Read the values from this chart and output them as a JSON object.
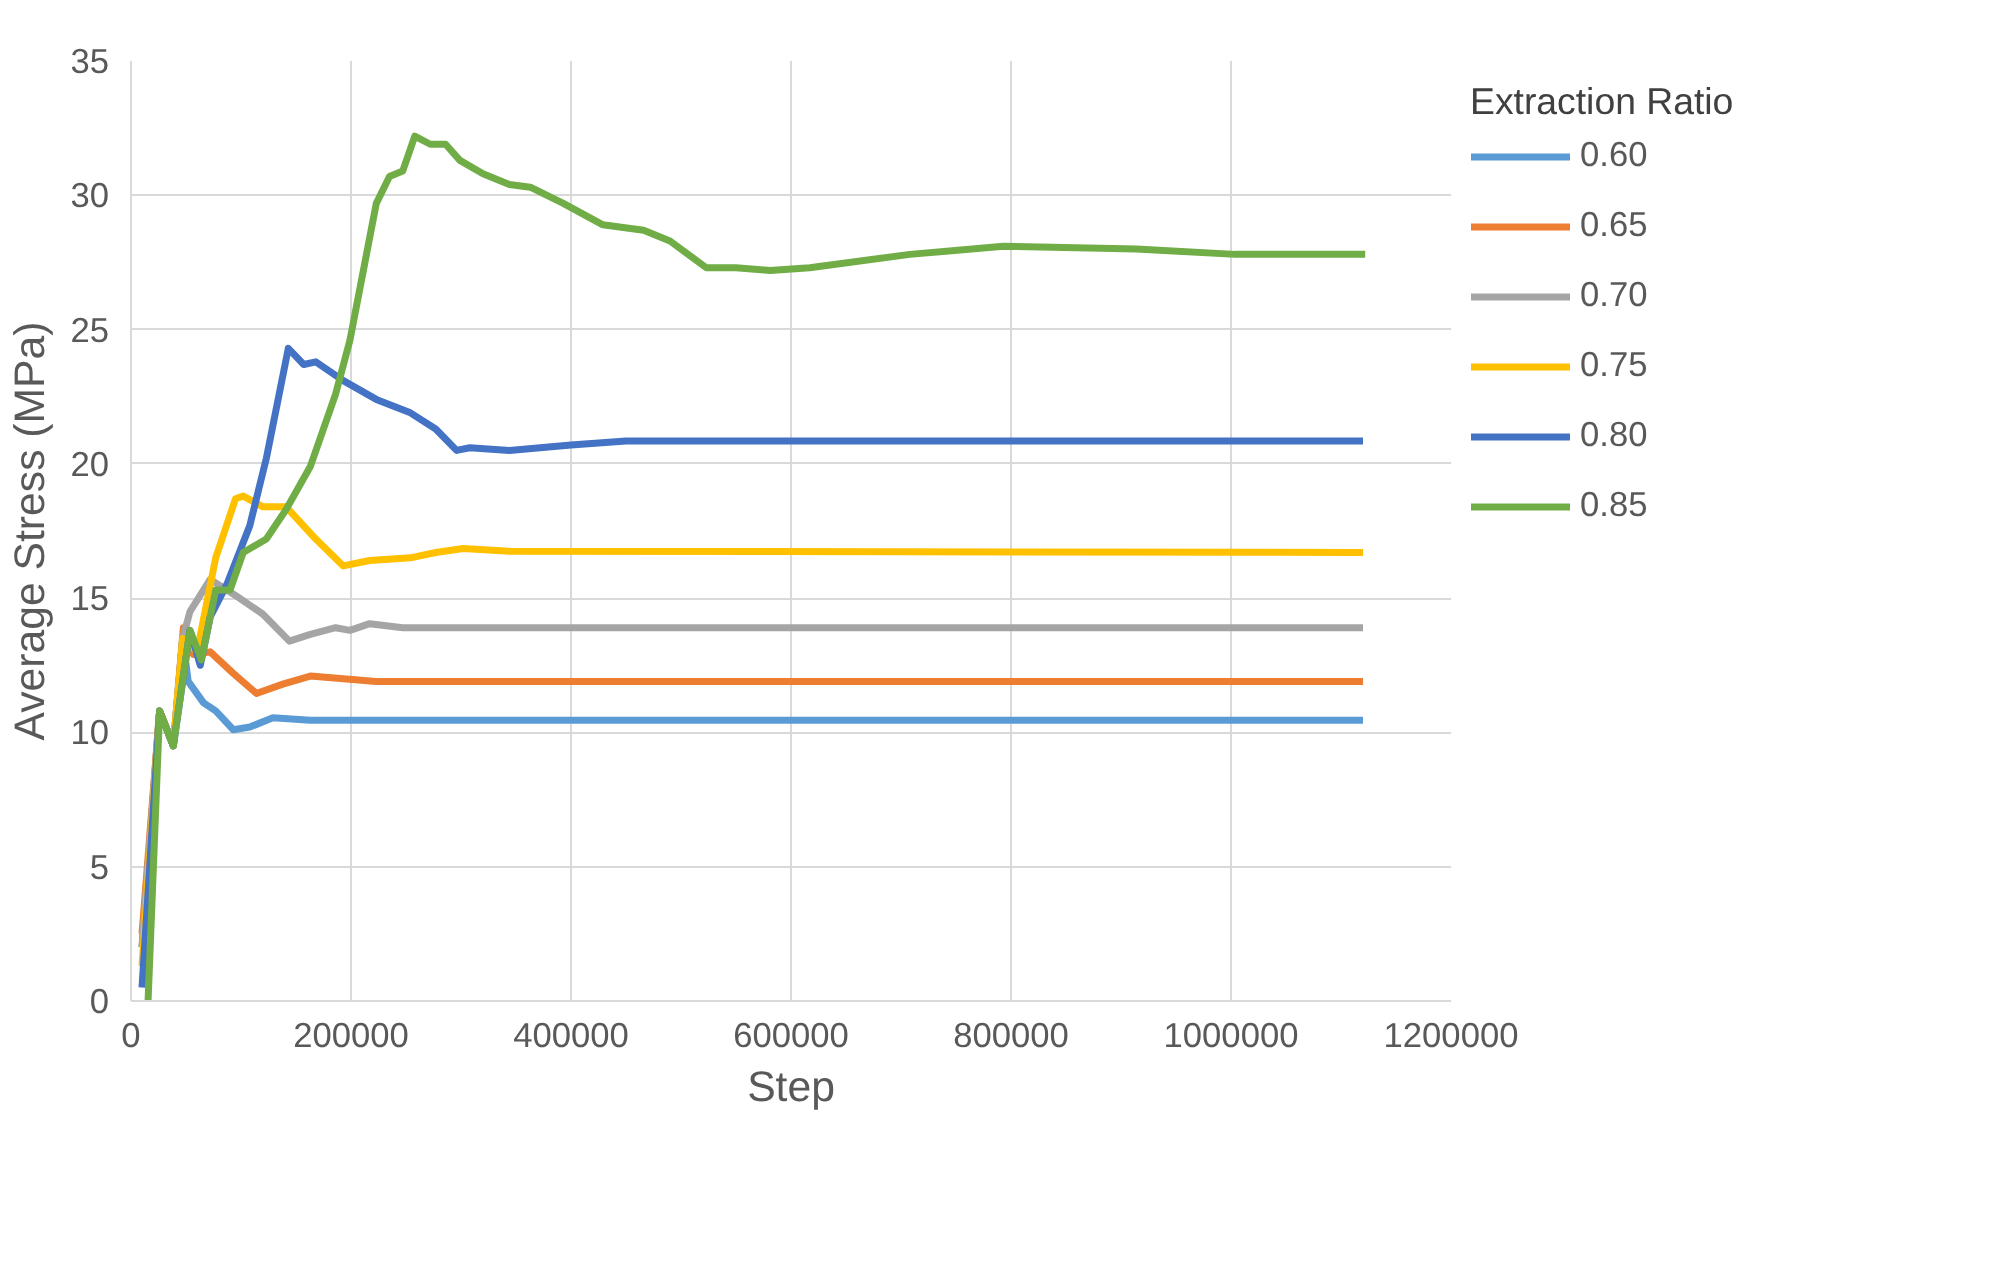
{
  "chart_data": {
    "type": "line",
    "xlabel": "Step",
    "ylabel": "Average Stress (MPa)",
    "legend_title": "Extraction Ratio",
    "legend": "right",
    "grid": true,
    "marker": "none",
    "line_style": "solid",
    "xlim": [
      0,
      1200000
    ],
    "xticks": [
      0,
      200000,
      400000,
      600000,
      800000,
      1000000,
      1200000
    ],
    "ylim": [
      0,
      35
    ],
    "yticks": [
      0,
      5,
      10,
      15,
      20,
      25,
      30,
      35
    ],
    "series": [
      {
        "name": "0.60",
        "color": "#5b9bd5",
        "x": [
          10000,
          26000,
          38500,
          47000,
          52000,
          66000,
          77000,
          93000,
          108000,
          129000,
          163000,
          1120000
        ],
        "values": [
          2,
          10.8,
          9.5,
          13.5,
          11.9,
          11.1,
          10.8,
          10.1,
          10.2,
          10.55,
          10.45,
          10.45
        ]
      },
      {
        "name": "0.65",
        "color": "#ed7d31",
        "x": [
          10000,
          26000,
          38500,
          47600,
          56700,
          72000,
          93000,
          114000,
          138000,
          163000,
          193000,
          223000,
          1120000
        ],
        "values": [
          2.5,
          10.8,
          9.5,
          13.9,
          12.9,
          13.0,
          12.2,
          11.45,
          11.8,
          12.1,
          12.0,
          11.9,
          11.9
        ]
      },
      {
        "name": "0.70",
        "color": "#a5a5a5",
        "x": [
          10000,
          26000,
          38500,
          47000,
          53600,
          72000,
          95000,
          120000,
          144000,
          163000,
          186000,
          199000,
          217000,
          247000,
          1120000
        ],
        "values": [
          2,
          10.8,
          9.5,
          13.5,
          14.5,
          15.7,
          15.1,
          14.4,
          13.4,
          13.65,
          13.9,
          13.8,
          14.05,
          13.9,
          13.9
        ]
      },
      {
        "name": "0.75",
        "color": "#ffc000",
        "x": [
          10000,
          26000,
          38500,
          47000,
          60000,
          77000,
          95000,
          102000,
          120000,
          141000,
          168000,
          193000,
          217000,
          254000,
          277000,
          302000,
          344000,
          1120000
        ],
        "values": [
          1.3,
          10.8,
          9.5,
          13.5,
          13.0,
          16.5,
          18.7,
          18.8,
          18.4,
          18.4,
          17.2,
          16.2,
          16.4,
          16.5,
          16.7,
          16.85,
          16.75,
          16.7
        ]
      },
      {
        "name": "0.80",
        "color": "#4472c4",
        "x": [
          10000,
          26000,
          38500,
          53600,
          63000,
          72000,
          87000,
          108000,
          123000,
          143000,
          157000,
          168000,
          193000,
          223000,
          254000,
          277000,
          296000,
          308000,
          344000,
          400000,
          450000,
          1120000
        ],
        "values": [
          0.5,
          10.8,
          9.5,
          13.8,
          12.5,
          14.3,
          15.5,
          17.7,
          20.2,
          24.3,
          23.7,
          23.8,
          23.1,
          22.4,
          21.9,
          21.3,
          20.5,
          20.6,
          20.5,
          20.7,
          20.85,
          20.85
        ]
      },
      {
        "name": "0.85",
        "color": "#70ad47",
        "x": [
          15500,
          26000,
          38500,
          53600,
          64000,
          77000,
          90000,
          102000,
          123000,
          141000,
          163000,
          186000,
          199000,
          223000,
          235000,
          247000,
          258000,
          272000,
          286000,
          299000,
          320000,
          344000,
          363000,
          393000,
          429000,
          466000,
          490000,
          523000,
          550000,
          581000,
          617000,
          708000,
          793000,
          914000,
          1004000,
          1122000
        ],
        "values": [
          0,
          10.8,
          9.5,
          13.8,
          12.7,
          15.3,
          15.3,
          16.7,
          17.2,
          18.3,
          19.9,
          22.6,
          24.6,
          29.7,
          30.7,
          30.9,
          32.2,
          31.9,
          31.9,
          31.3,
          30.8,
          30.4,
          30.3,
          29.7,
          28.9,
          28.7,
          28.3,
          27.3,
          27.3,
          27.2,
          27.3,
          27.8,
          28.1,
          28.0,
          27.8,
          27.8
        ]
      }
    ]
  }
}
